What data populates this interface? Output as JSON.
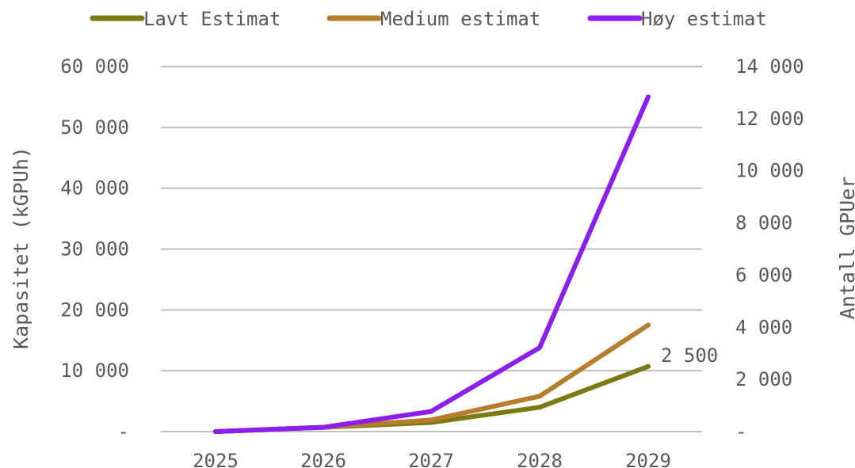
{
  "chart_data": {
    "type": "line",
    "categories": [
      "2025",
      "2026",
      "2027",
      "2028",
      "2029"
    ],
    "series": [
      {
        "name": "Lavt Estimat",
        "color": "#7a7a10",
        "values": [
          0,
          700,
          1500,
          4000,
          10700
        ],
        "end_label": "2 500"
      },
      {
        "name": "Medium estimat",
        "color": "#b67d2a",
        "values": [
          0,
          700,
          1900,
          5800,
          17500
        ]
      },
      {
        "name": "Høy estimat",
        "color": "#8c1ef0",
        "values": [
          0,
          700,
          3300,
          13800,
          55000
        ]
      }
    ],
    "y_left": {
      "label": "Kapasitet (kGPUh)",
      "range": [
        0,
        60000
      ],
      "ticks": [
        {
          "value": 0,
          "label": "-"
        },
        {
          "value": 10000,
          "label": "10 000"
        },
        {
          "value": 20000,
          "label": "20 000"
        },
        {
          "value": 30000,
          "label": "30 000"
        },
        {
          "value": 40000,
          "label": "40 000"
        },
        {
          "value": 50000,
          "label": "50 000"
        },
        {
          "value": 60000,
          "label": "60 000"
        }
      ]
    },
    "y_right": {
      "label": "Antall GPUer",
      "range": [
        0,
        14000
      ],
      "ticks": [
        {
          "value": 0,
          "label": "-"
        },
        {
          "value": 2000,
          "label": "2 000"
        },
        {
          "value": 4000,
          "label": "4 000"
        },
        {
          "value": 6000,
          "label": "6 000"
        },
        {
          "value": 8000,
          "label": "8 000"
        },
        {
          "value": 10000,
          "label": "10 000"
        },
        {
          "value": 12000,
          "label": "12 000"
        },
        {
          "value": 14000,
          "label": "14 000"
        }
      ]
    },
    "grid": true,
    "legend_position": "top",
    "gridline_color": "#bfbfbf",
    "text_color": "#595959"
  }
}
